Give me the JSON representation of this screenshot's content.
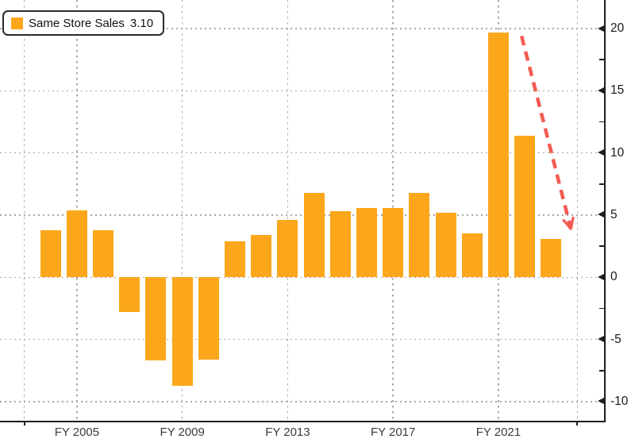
{
  "legend": {
    "label": "Same Store Sales",
    "value": "3.10"
  },
  "colors": {
    "bar": "#FCA71B",
    "arrow": "#F25B52",
    "grid": "#A8A8A8",
    "axis": "#1F1F1F",
    "label": "#1A1A1A",
    "xlabel": "#3C3C3C",
    "legend_border": "#2B2B2B",
    "background": "#FFFFFF"
  },
  "chart_data": {
    "type": "bar",
    "title": "",
    "series_name": "Same Store Sales",
    "x": [
      2004,
      2005,
      2006,
      2007,
      2008,
      2009,
      2010,
      2011,
      2012,
      2013,
      2014,
      2015,
      2016,
      2017,
      2018,
      2019,
      2020,
      2021,
      2022,
      2023
    ],
    "values": [
      3.8,
      5.4,
      3.8,
      -2.8,
      -6.7,
      -8.7,
      -6.6,
      2.9,
      3.4,
      4.6,
      6.8,
      5.3,
      5.6,
      5.6,
      6.8,
      5.2,
      3.5,
      19.7,
      11.4,
      3.1
    ],
    "x_tick_years": [
      2005,
      2009,
      2013,
      2017,
      2021
    ],
    "x_tick_labels": [
      "FY 2005",
      "FY 2009",
      "FY 2013",
      "FY 2017",
      "FY 2021"
    ],
    "x_grid_years": [
      2003,
      2005,
      2009,
      2013,
      2017,
      2021,
      2024
    ],
    "x_minor_tick_years": [
      2003,
      2024
    ],
    "y_ticks": [
      -10,
      -5,
      0,
      5,
      10,
      15,
      20
    ],
    "y_minor_ticks": [
      -7.5,
      -2.5,
      2.5,
      7.5,
      12.5,
      17.5
    ],
    "xlim": [
      2002.08,
      2025.04
    ],
    "ylim": [
      -11.6,
      22.3
    ],
    "grid": "dotted",
    "legend_position": "top-left",
    "y_axis_side": "right",
    "annotation": {
      "type": "arrow",
      "style": "dashed",
      "from": [
        2021.88,
        19.4
      ],
      "to": [
        2023.75,
        3.9
      ]
    }
  }
}
